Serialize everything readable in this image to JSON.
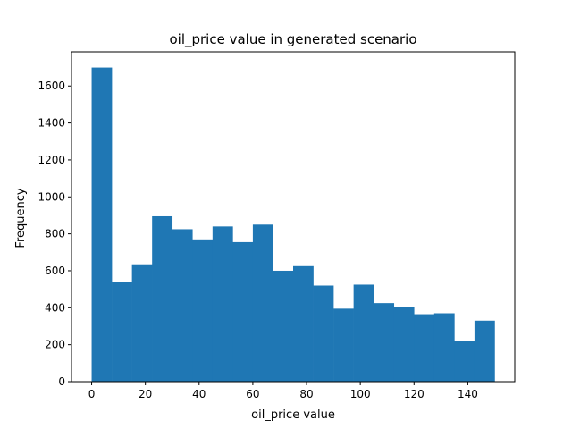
{
  "chart_data": {
    "type": "bar",
    "histogram": true,
    "title": "oil_price value in generated scenario",
    "xlabel": "oil_price value",
    "ylabel": "Frequency",
    "bin_edges": [
      0,
      7.5,
      15,
      22.5,
      30,
      37.5,
      45,
      52.5,
      60,
      67.5,
      75,
      82.5,
      90,
      97.5,
      105,
      112.5,
      120,
      127.5,
      135,
      142.5,
      150
    ],
    "values": [
      1700,
      540,
      635,
      895,
      825,
      770,
      840,
      755,
      850,
      600,
      625,
      520,
      395,
      525,
      425,
      405,
      365,
      370,
      220,
      330
    ],
    "xlim": [
      -7.5,
      157.5
    ],
    "ylim": [
      0,
      1785
    ],
    "xticks": [
      0,
      20,
      40,
      60,
      80,
      100,
      120,
      140
    ],
    "yticks": [
      0,
      200,
      400,
      600,
      800,
      1000,
      1200,
      1400,
      1600
    ],
    "bar_color": "#1f77b4",
    "grid": false,
    "legend": false
  }
}
